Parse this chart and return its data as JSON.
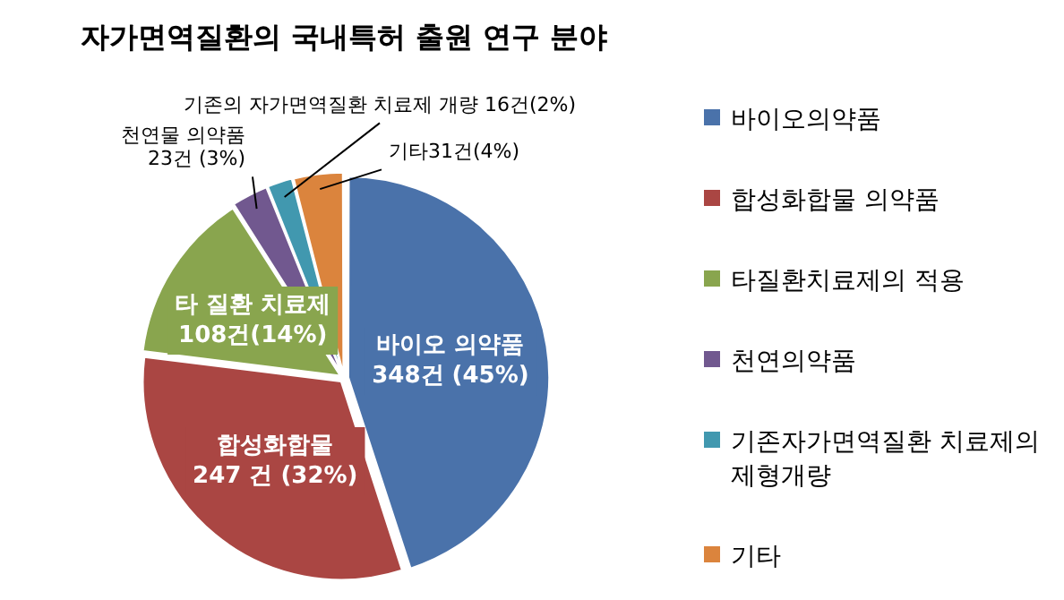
{
  "chart_data": {
    "type": "pie",
    "title": "자가면역질환의 국내특허 출원 연구 분야",
    "categories": [
      "바이오의약품",
      "합성화합물 의약품",
      "타질환치료제의 적용",
      "천연의약품",
      "기존자가면역질환 치료제의 제형개량",
      "기타"
    ],
    "values": [
      348,
      247,
      108,
      23,
      16,
      31
    ],
    "colors": [
      "#4a72aa",
      "#aa4643",
      "#89a54e",
      "#71588f",
      "#4198af",
      "#db843d"
    ],
    "value_labels": [
      "바이오 의약품\n348건 (45%)",
      "합성화합물\n247 건 (32%)",
      "타 질환 치료제\n108건(14%)",
      "천연물 의약품\n23건 (3%)",
      "기존의 자가면역질환 치료제 개량 16건(2%)",
      "기타31건(4%)"
    ],
    "legend": "right"
  }
}
